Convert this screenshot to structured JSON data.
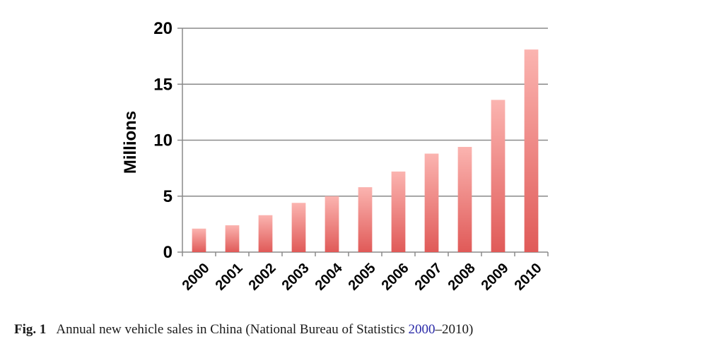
{
  "chart_data": {
    "type": "bar",
    "categories": [
      "2000",
      "2001",
      "2002",
      "2003",
      "2004",
      "2005",
      "2006",
      "2007",
      "2008",
      "2009",
      "2010"
    ],
    "values": [
      2.1,
      2.4,
      3.3,
      4.4,
      5.0,
      5.8,
      7.2,
      8.8,
      9.4,
      13.6,
      18.1
    ],
    "ylabel": "Millions",
    "xlabel": "",
    "ylim": [
      0,
      20
    ],
    "yticks": [
      0,
      5,
      10,
      15,
      20
    ],
    "grid": true,
    "bar_color_top": "#fbb4b0",
    "bar_color_bottom": "#e05a58"
  },
  "caption": {
    "fig_label": "Fig. 1",
    "text_before": "Annual new vehicle sales in China (National Bureau of Statistics ",
    "link_text": "2000",
    "text_after": "–2010)"
  }
}
